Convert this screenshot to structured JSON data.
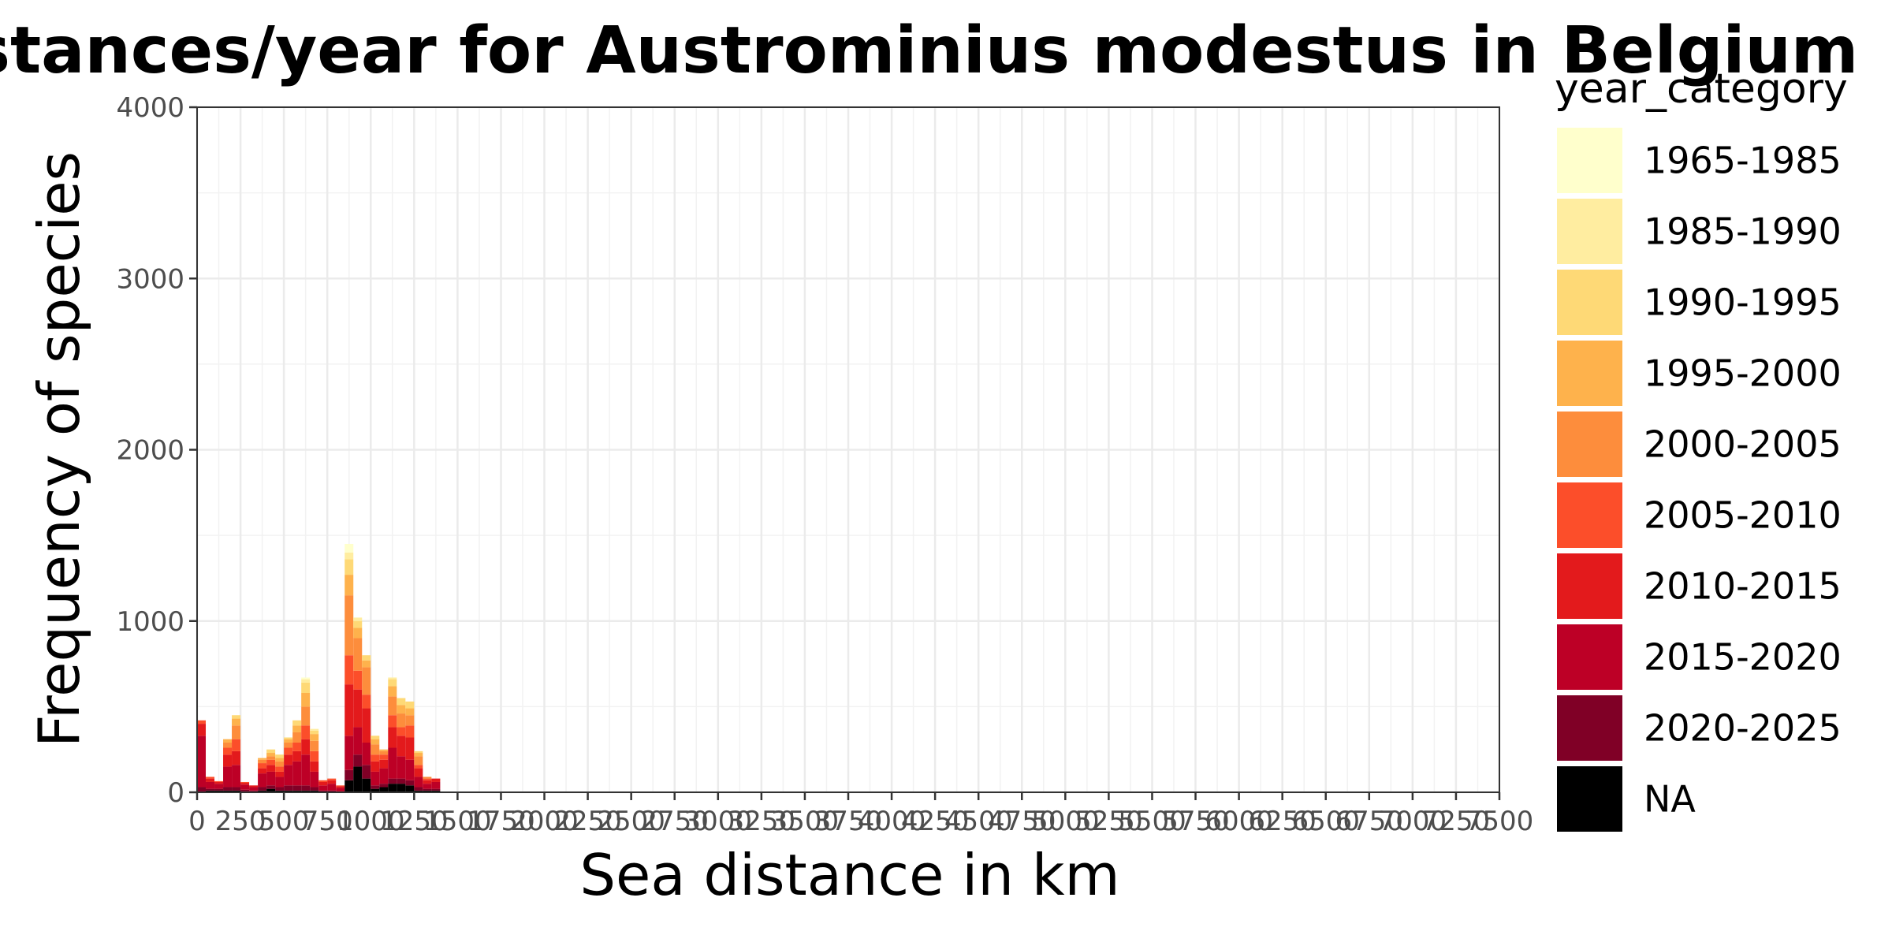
{
  "chart_data": {
    "type": "bar",
    "stacked": true,
    "title": "Histogram of Sea distances/year for Austrominius modestus in Belgium",
    "xlabel": "Sea distance in km",
    "ylabel": "Frequency of species",
    "xlim": [
      0,
      7500
    ],
    "ylim": [
      0,
      4000
    ],
    "bin_width": 50,
    "x_ticks": [
      0,
      250,
      500,
      750,
      1000,
      1250,
      1500,
      1750,
      2000,
      2250,
      2500,
      2750,
      3000,
      3250,
      3500,
      3750,
      4000,
      4250,
      4500,
      4750,
      5000,
      5250,
      5500,
      5750,
      6000,
      6250,
      6500,
      6750,
      7000,
      7250,
      7500
    ],
    "y_ticks": [
      0,
      1000,
      2000,
      3000,
      4000
    ],
    "grid": true,
    "legend": {
      "title": "year_category",
      "position": "right"
    },
    "series": [
      {
        "name": "NA",
        "color": "#000000"
      },
      {
        "name": "2020-2025",
        "color": "#800026"
      },
      {
        "name": "2015-2020",
        "color": "#BD0026"
      },
      {
        "name": "2010-2015",
        "color": "#E31A1C"
      },
      {
        "name": "2005-2010",
        "color": "#FC4E2A"
      },
      {
        "name": "2000-2005",
        "color": "#FD8D3C"
      },
      {
        "name": "1995-2000",
        "color": "#FEB24C"
      },
      {
        "name": "1990-1995",
        "color": "#FED976"
      },
      {
        "name": "1985-1990",
        "color": "#FFEDA0"
      },
      {
        "name": "1965-1985",
        "color": "#FFFFCC"
      }
    ],
    "legend_order": [
      "1965-1985",
      "1985-1990",
      "1990-1995",
      "1995-2000",
      "2000-2005",
      "2005-2010",
      "2010-2015",
      "2015-2020",
      "2020-2025",
      "NA"
    ],
    "bins": [
      {
        "x": 0,
        "counts": [
          0,
          30,
          300,
          70,
          20,
          0,
          0,
          0,
          0,
          0
        ]
      },
      {
        "x": 50,
        "counts": [
          10,
          10,
          40,
          20,
          10,
          0,
          0,
          0,
          0,
          0
        ]
      },
      {
        "x": 100,
        "counts": [
          10,
          10,
          30,
          10,
          5,
          0,
          0,
          0,
          0,
          0
        ]
      },
      {
        "x": 150,
        "counts": [
          10,
          20,
          120,
          70,
          40,
          30,
          20,
          0,
          0,
          0
        ]
      },
      {
        "x": 200,
        "counts": [
          10,
          20,
          130,
          80,
          70,
          80,
          40,
          20,
          0,
          0
        ]
      },
      {
        "x": 250,
        "counts": [
          5,
          10,
          30,
          10,
          5,
          0,
          0,
          0,
          0,
          0
        ]
      },
      {
        "x": 300,
        "counts": [
          5,
          5,
          20,
          10,
          0,
          0,
          0,
          0,
          0,
          0
        ]
      },
      {
        "x": 350,
        "counts": [
          10,
          20,
          80,
          30,
          30,
          20,
          10,
          0,
          0,
          0
        ]
      },
      {
        "x": 400,
        "counts": [
          20,
          20,
          80,
          40,
          30,
          20,
          20,
          20,
          0,
          0
        ]
      },
      {
        "x": 450,
        "counts": [
          10,
          20,
          60,
          30,
          30,
          30,
          20,
          20,
          0,
          0
        ]
      },
      {
        "x": 500,
        "counts": [
          10,
          30,
          120,
          60,
          40,
          30,
          20,
          10,
          0,
          0
        ]
      },
      {
        "x": 550,
        "counts": [
          10,
          30,
          140,
          60,
          50,
          60,
          40,
          30,
          0,
          0
        ]
      },
      {
        "x": 600,
        "counts": [
          10,
          30,
          180,
          90,
          80,
          110,
          80,
          60,
          20,
          10
        ]
      },
      {
        "x": 650,
        "counts": [
          10,
          20,
          90,
          60,
          60,
          60,
          40,
          20,
          10,
          0
        ]
      },
      {
        "x": 700,
        "counts": [
          0,
          10,
          30,
          20,
          10,
          0,
          0,
          0,
          0,
          0
        ]
      },
      {
        "x": 750,
        "counts": [
          0,
          10,
          40,
          20,
          10,
          0,
          0,
          0,
          0,
          0
        ]
      },
      {
        "x": 800,
        "counts": [
          0,
          5,
          20,
          10,
          5,
          0,
          0,
          0,
          0,
          0
        ]
      },
      {
        "x": 850,
        "counts": [
          70,
          60,
          200,
          300,
          170,
          350,
          120,
          90,
          40,
          50
        ]
      },
      {
        "x": 900,
        "counts": [
          150,
          70,
          160,
          220,
          110,
          190,
          60,
          40,
          20,
          0
        ]
      },
      {
        "x": 950,
        "counts": [
          80,
          80,
          130,
          200,
          80,
          160,
          40,
          30,
          0,
          0
        ]
      },
      {
        "x": 1000,
        "counts": [
          20,
          20,
          80,
          60,
          40,
          60,
          30,
          20,
          0,
          0
        ]
      },
      {
        "x": 1050,
        "counts": [
          30,
          20,
          90,
          50,
          30,
          20,
          10,
          0,
          0,
          0
        ]
      },
      {
        "x": 1100,
        "counts": [
          50,
          30,
          180,
          120,
          70,
          110,
          60,
          40,
          10,
          0
        ]
      },
      {
        "x": 1150,
        "counts": [
          50,
          30,
          130,
          120,
          50,
          80,
          50,
          40,
          0,
          0
        ]
      },
      {
        "x": 1200,
        "counts": [
          40,
          30,
          120,
          130,
          70,
          60,
          40,
          40,
          0,
          0
        ]
      },
      {
        "x": 1250,
        "counts": [
          10,
          20,
          60,
          50,
          20,
          50,
          20,
          10,
          0,
          0
        ]
      },
      {
        "x": 1300,
        "counts": [
          10,
          10,
          30,
          20,
          10,
          10,
          0,
          0,
          0,
          0
        ]
      },
      {
        "x": 1350,
        "counts": [
          10,
          10,
          40,
          20,
          0,
          0,
          0,
          0,
          0,
          0
        ]
      }
    ]
  }
}
